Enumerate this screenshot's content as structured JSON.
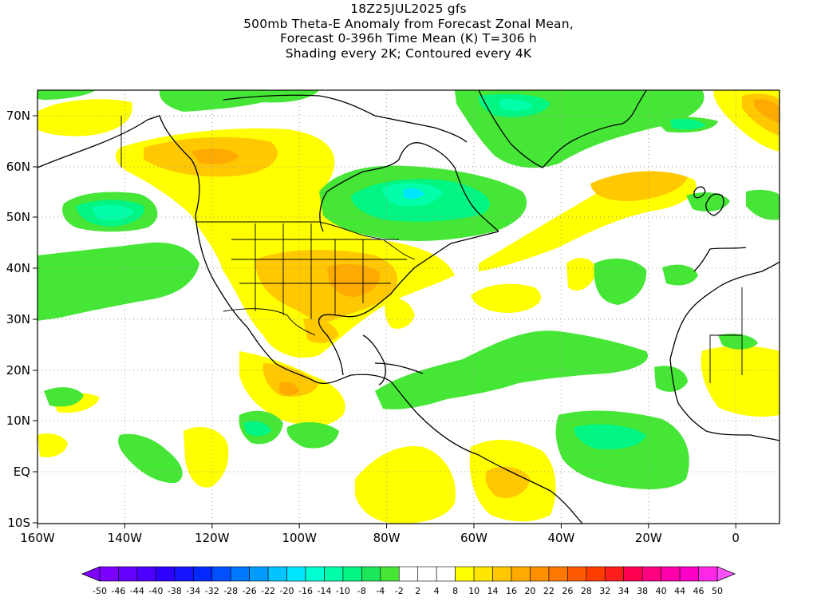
{
  "title": {
    "line1": "18Z25JUL2025 gfs",
    "line2": "500mb Theta-E Anomaly from Forecast Zonal Mean,",
    "line3": "Forecast 0-396h Time Mean (K) T=306 h",
    "line4": "Shading every 2K; Contoured every 4K"
  },
  "map": {
    "lon_range": [
      -160,
      10
    ],
    "lat_range": [
      -10,
      75
    ],
    "lat_ticks": [
      "70N",
      "60N",
      "50N",
      "40N",
      "30N",
      "20N",
      "10N",
      "EQ",
      "10S"
    ],
    "lon_ticks": [
      "160W",
      "140W",
      "120W",
      "100W",
      "80W",
      "60W",
      "40W",
      "20W",
      "0"
    ]
  },
  "colorbar": {
    "labels": [
      "-50",
      "-46",
      "-44",
      "-40",
      "-38",
      "-34",
      "-32",
      "-28",
      "-26",
      "-22",
      "-20",
      "-16",
      "-14",
      "-10",
      "-8",
      "-4",
      "-2",
      "2",
      "4",
      "8",
      "10",
      "14",
      "16",
      "20",
      "22",
      "26",
      "28",
      "32",
      "34",
      "38",
      "40",
      "44",
      "46",
      "50"
    ],
    "colors": [
      "#7a00ff",
      "#6400ff",
      "#4b00ff",
      "#2d00ff",
      "#1414ff",
      "#0028ff",
      "#0050ff",
      "#0078ff",
      "#009bff",
      "#00c3ff",
      "#00e6ff",
      "#00ffd2",
      "#00ffa8",
      "#00f582",
      "#1ee65a",
      "#46e637",
      "#ffffff",
      "#ffffff",
      "#ffffff",
      "#ffff00",
      "#ffe600",
      "#ffc800",
      "#ffaa00",
      "#ff9100",
      "#ff7800",
      "#ff5a00",
      "#ff3c00",
      "#ff1e1e",
      "#ff0050",
      "#ff0080",
      "#ff00aa",
      "#ff00c8",
      "#ff28e6"
    ],
    "left_arrow_color": "#8000ff",
    "right_arrow_color": "#ff50ff"
  }
}
